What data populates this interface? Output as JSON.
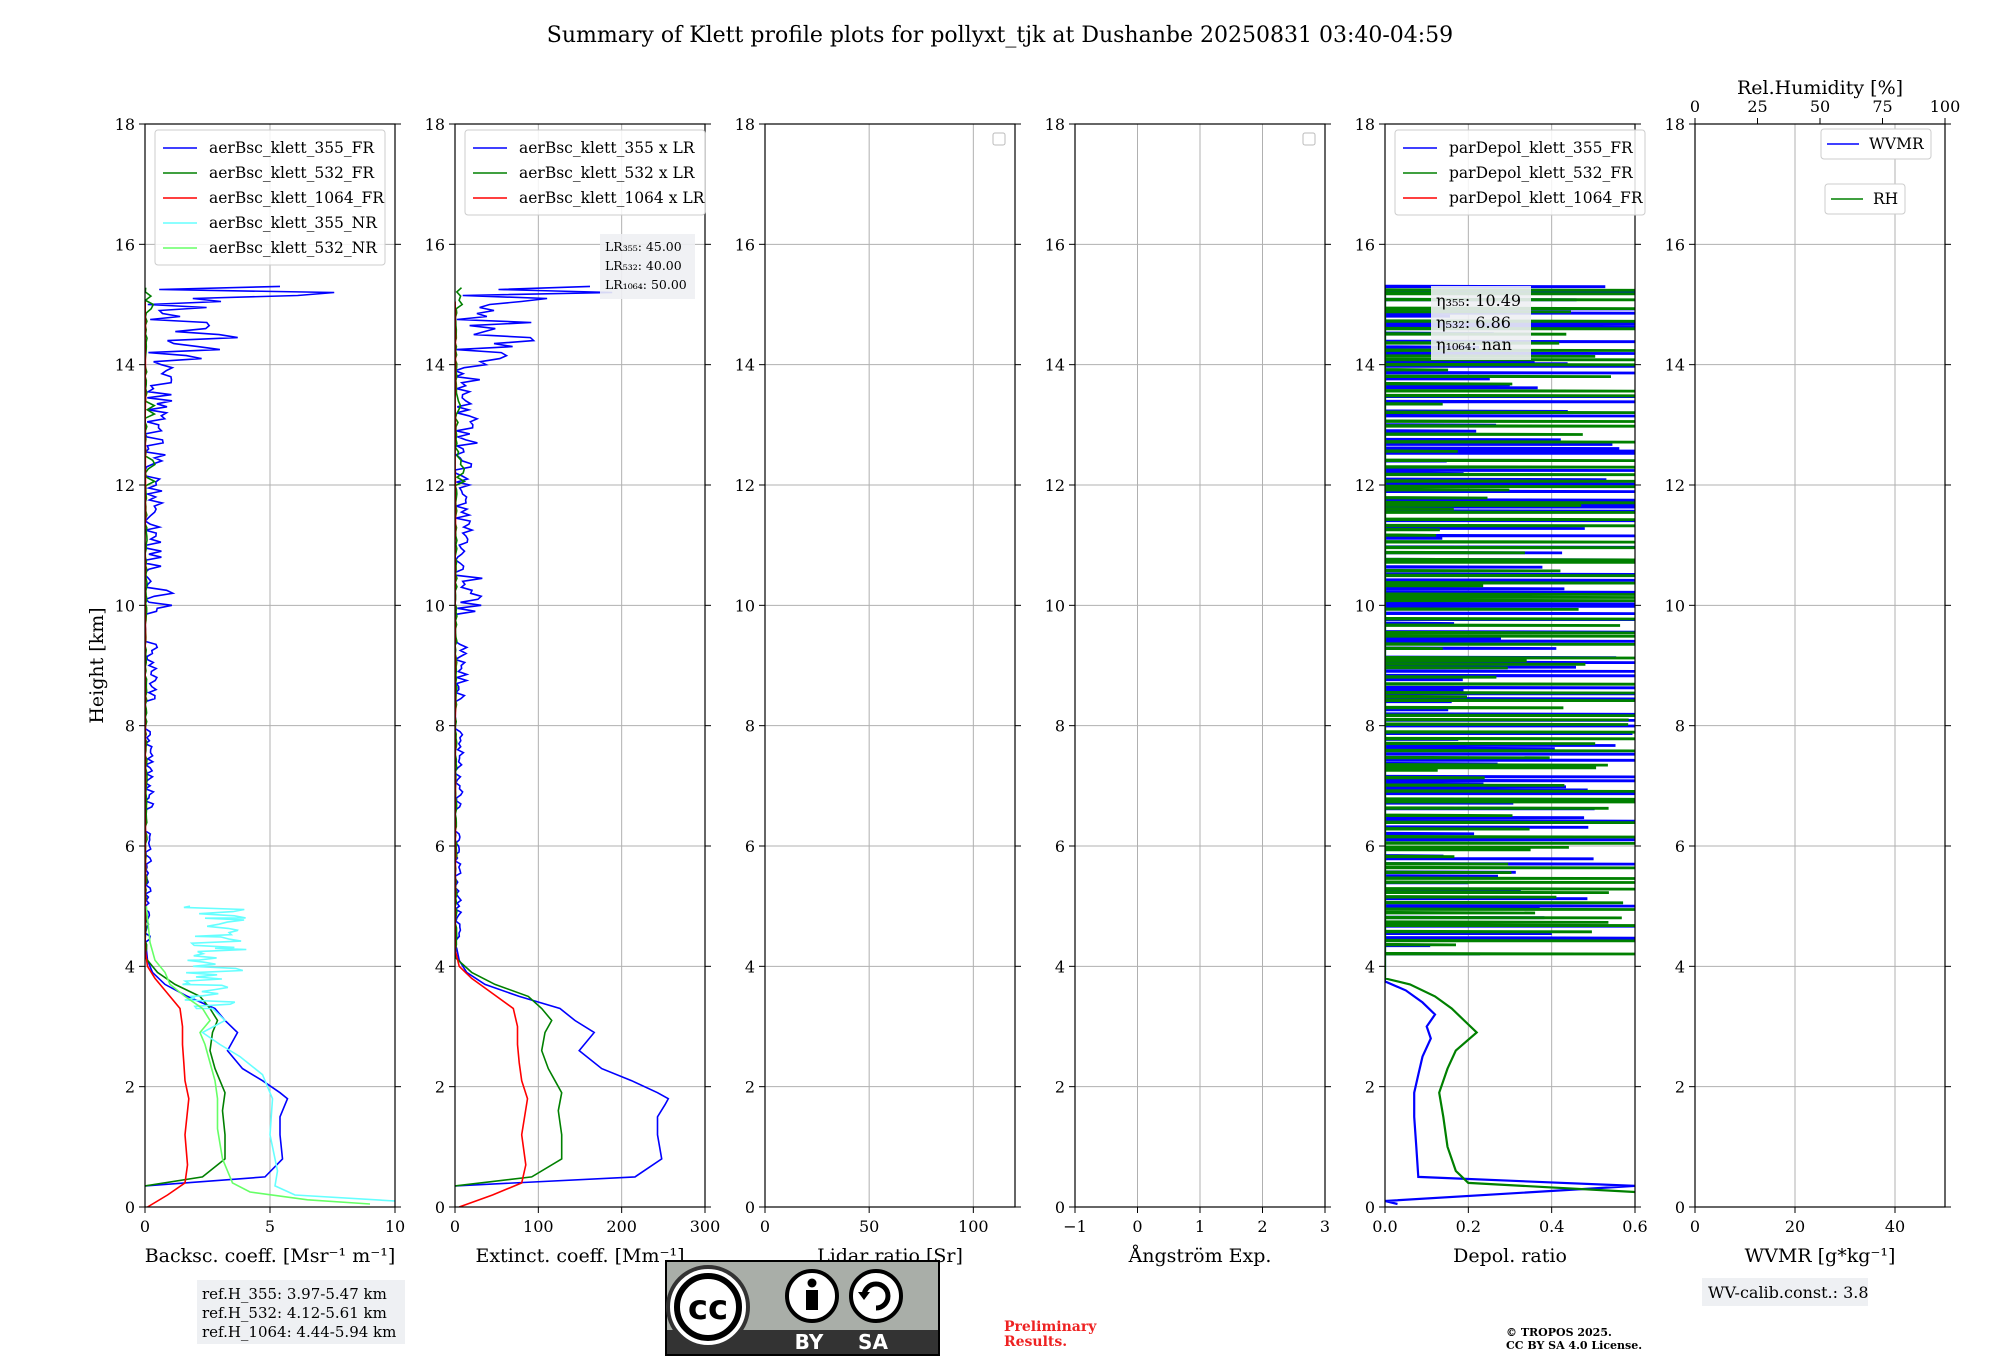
{
  "title": "Summary of Klett profile plots for pollyxt_tjk at Dushanbe 20250831 03:40-04:59",
  "colors": {
    "b355": "#0000ff",
    "g532": "#008000",
    "r1064": "#ff0000",
    "c355nr": "#66ffff",
    "lg532nr": "#66ff66",
    "grid": "#b0b0b0",
    "boxbg": "#eef0f3",
    "prelim": "#ee2222",
    "cc_gray": "#a9aea8",
    "cc_dark": "#333333"
  },
  "footer": {
    "refh": [
      "ref.H_355: 3.97-5.47 km",
      "ref.H_532: 4.12-5.61 km",
      "ref.H_1064: 4.44-5.94 km"
    ],
    "cc_by": "BY",
    "cc_sa": "SA",
    "cc_mark": "cc",
    "preliminary": [
      "Preliminary",
      "Results."
    ],
    "copyright": [
      "© TROPOS 2025.",
      "CC BY SA 4.0 License."
    ],
    "wvcalib": "WV-calib.const.: 3.8"
  },
  "chart_data": [
    {
      "type": "line",
      "xlabel": "Backsc. coeff. [Msr⁻¹ m⁻¹]",
      "ylabel": "Height [km]",
      "xlim": [
        0,
        10
      ],
      "ylim": [
        0,
        18
      ],
      "xticks": [
        "0",
        "5",
        "10"
      ],
      "yticks": [
        "0",
        "2",
        "4",
        "6",
        "8",
        "10",
        "12",
        "14",
        "16",
        "18"
      ],
      "grid": true,
      "legend_placement": "top-left",
      "series": [
        {
          "name": "aerBsc_klett_355_FR",
          "color": "b355",
          "kind": "fr355",
          "y": [
            0.35,
            0.5,
            0.8,
            1.2,
            1.5,
            1.7,
            1.8,
            1.9,
            2.1,
            2.3,
            2.6,
            2.9,
            3.1,
            3.3,
            3.5,
            3.7,
            3.9,
            4.1,
            4.3
          ],
          "x": [
            0,
            4.8,
            5.5,
            5.4,
            5.4,
            5.6,
            5.7,
            5.4,
            4.7,
            3.9,
            3.3,
            3.7,
            3.2,
            2.8,
            1.7,
            0.8,
            0.3,
            0.1,
            0.05
          ]
        },
        {
          "name": "aerBsc_klett_532_FR",
          "color": "g532",
          "kind": "fr532",
          "y": [
            0.35,
            0.5,
            0.8,
            1.2,
            1.6,
            1.9,
            2.1,
            2.3,
            2.6,
            2.9,
            3.1,
            3.3,
            3.5,
            3.7,
            3.9,
            4.1
          ],
          "x": [
            0,
            2.3,
            3.2,
            3.2,
            3.1,
            3.2,
            3.0,
            2.8,
            2.6,
            2.7,
            2.9,
            2.6,
            2.2,
            1.2,
            0.5,
            0.1
          ]
        },
        {
          "name": "aerBsc_klett_1064_FR",
          "color": "r1064",
          "kind": "fr1064",
          "y": [
            0,
            0.2,
            0.4,
            0.7,
            1.2,
            1.8,
            2.1,
            2.4,
            2.7,
            3.0,
            3.3,
            3.6,
            3.8,
            4.0,
            4.2
          ],
          "x": [
            0.1,
            0.9,
            1.6,
            1.7,
            1.6,
            1.75,
            1.6,
            1.55,
            1.5,
            1.5,
            1.4,
            0.8,
            0.4,
            0.1,
            0.03
          ]
        },
        {
          "name": "aerBsc_klett_355_NR",
          "color": "c355nr",
          "kind": "nr355",
          "y": [
            0.1,
            0.2,
            0.35,
            0.6,
            1.2,
            1.8,
            2.2,
            2.5,
            2.7,
            2.9,
            3.1,
            3.3,
            3.5,
            3.7,
            3.9,
            4.1,
            4.3,
            4.5,
            4.6,
            4.8,
            5.0
          ],
          "x": [
            10,
            6,
            5.2,
            5.3,
            5.0,
            5.1,
            4.7,
            3.8,
            3.0,
            2.3,
            3.2,
            2.7,
            1.8,
            1.5,
            2.1,
            1.7,
            2.8,
            2.0,
            3.7,
            2.4,
            1.8
          ]
        },
        {
          "name": "aerBsc_klett_532_NR",
          "color": "lg532nr",
          "kind": "nr532",
          "y": [
            0.05,
            0.12,
            0.25,
            0.4,
            0.8,
            1.3,
            1.8,
            2.1,
            2.4,
            2.7,
            2.9,
            3.1,
            3.3,
            3.5,
            3.7,
            3.9,
            4.1,
            4.4,
            4.8,
            5.0
          ],
          "x": [
            9,
            6.5,
            4.2,
            3.5,
            3.1,
            2.9,
            2.9,
            2.8,
            2.6,
            2.4,
            2.2,
            2.6,
            2.3,
            1.6,
            1.0,
            0.8,
            0.4,
            0.2,
            0.1,
            0.05
          ]
        }
      ]
    },
    {
      "type": "line",
      "xlabel": "Extinct. coeff. [Mm⁻¹]",
      "xlim": [
        0,
        300
      ],
      "ylim": [
        0,
        18
      ],
      "xticks": [
        "0",
        "100",
        "200",
        "300"
      ],
      "yticks": [
        "0",
        "2",
        "4",
        "6",
        "8",
        "10",
        "12",
        "14",
        "16",
        "18"
      ],
      "grid": true,
      "legend_placement": "top-left",
      "annotation": [
        "LR₃₅₅: 45.00",
        "LR₅₃₂: 40.00",
        "LR₁₀₆₄: 50.00"
      ],
      "series": [
        {
          "name": "aerBsc_klett_355 x LR",
          "color": "b355",
          "kind": "fr355",
          "y": [
            0.35,
            0.5,
            0.8,
            1.2,
            1.5,
            1.7,
            1.8,
            1.9,
            2.1,
            2.3,
            2.6,
            2.9,
            3.1,
            3.3,
            3.5,
            3.7,
            3.9,
            4.1,
            4.3
          ],
          "x": [
            0,
            216,
            248,
            243,
            243,
            252,
            256,
            243,
            212,
            176,
            149,
            167,
            144,
            126,
            77,
            36,
            14,
            5,
            2
          ]
        },
        {
          "name": "aerBsc_klett_532 x LR",
          "color": "g532",
          "kind": "fr532",
          "y": [
            0.35,
            0.5,
            0.8,
            1.2,
            1.6,
            1.9,
            2.1,
            2.3,
            2.6,
            2.9,
            3.1,
            3.3,
            3.5,
            3.7,
            3.9,
            4.1
          ],
          "x": [
            0,
            92,
            128,
            128,
            124,
            128,
            120,
            112,
            104,
            108,
            116,
            104,
            88,
            48,
            20,
            4
          ]
        },
        {
          "name": "aerBsc_klett_1064 x LR",
          "color": "r1064",
          "kind": "fr1064",
          "y": [
            0,
            0.2,
            0.4,
            0.7,
            1.2,
            1.8,
            2.1,
            2.4,
            2.7,
            3.0,
            3.3,
            3.6,
            3.8,
            4.0,
            4.2
          ],
          "x": [
            5,
            45,
            80,
            85,
            80,
            87,
            80,
            77,
            75,
            75,
            70,
            40,
            20,
            5,
            1.5
          ]
        }
      ]
    },
    {
      "type": "line",
      "xlabel": "Lidar ratio [Sr]",
      "xlim": [
        0,
        120
      ],
      "ylim": [
        0,
        18
      ],
      "xticks": [
        "0",
        "50",
        "100"
      ],
      "yticks": [
        "0",
        "2",
        "4",
        "6",
        "8",
        "10",
        "12",
        "14",
        "16",
        "18"
      ],
      "grid": true,
      "legend_placement": "top-right",
      "series": []
    },
    {
      "type": "line",
      "xlabel": "Ångström Exp.",
      "xlim": [
        -1,
        3
      ],
      "ylim": [
        0,
        18
      ],
      "xticks": [
        "−1",
        "0",
        "1",
        "2",
        "3"
      ],
      "yticks": [
        "0",
        "2",
        "4",
        "6",
        "8",
        "10",
        "12",
        "14",
        "16",
        "18"
      ],
      "grid": true,
      "legend_placement": "top-right",
      "series": []
    },
    {
      "type": "line",
      "xlabel": "Depol. ratio",
      "xlim": [
        0,
        0.6
      ],
      "ylim": [
        0,
        18
      ],
      "xticks": [
        "0.0",
        "0.2",
        "0.4",
        "0.6"
      ],
      "yticks": [
        "0",
        "2",
        "4",
        "6",
        "8",
        "10",
        "12",
        "14",
        "16",
        "18"
      ],
      "grid": true,
      "legend_placement": "top-left",
      "annotation": [
        "η₃₅₅: 10.49",
        "η₅₃₂: 6.86",
        "η₁₀₆₄: nan"
      ],
      "series": [
        {
          "name": "parDepol_klett_355_FR",
          "color": "b355",
          "kind": "dep355",
          "y": [
            0.05,
            0.1,
            0.35,
            0.5,
            1.0,
            1.5,
            1.9,
            2.2,
            2.5,
            2.8,
            3.0,
            3.2,
            3.4,
            3.6,
            3.75
          ],
          "x": [
            0.03,
            0.0,
            0.6,
            0.08,
            0.075,
            0.07,
            0.07,
            0.08,
            0.09,
            0.11,
            0.1,
            0.12,
            0.09,
            0.05,
            0.0
          ]
        },
        {
          "name": "parDepol_klett_532_FR",
          "color": "g532",
          "kind": "dep532",
          "y": [
            0.25,
            0.4,
            0.6,
            1.0,
            1.5,
            1.9,
            2.3,
            2.6,
            2.9,
            3.1,
            3.3,
            3.5,
            3.7,
            3.8
          ],
          "x": [
            0.6,
            0.2,
            0.17,
            0.15,
            0.14,
            0.13,
            0.15,
            0.17,
            0.22,
            0.19,
            0.16,
            0.12,
            0.06,
            0.0
          ]
        },
        {
          "name": "parDepol_klett_1064_FR",
          "color": "r1064",
          "kind": "none",
          "y": [],
          "x": []
        }
      ]
    },
    {
      "type": "line",
      "xlabel": "WVMR [g*kg⁻¹]",
      "x2label": "Rel.Humidity [%]",
      "xlim": [
        0,
        50
      ],
      "x2lim": [
        0,
        100
      ],
      "ylim": [
        0,
        18
      ],
      "xticks": [
        "0",
        "20",
        "40"
      ],
      "x2ticks": [
        "0",
        "25",
        "50",
        "75",
        "100"
      ],
      "yticks": [
        "0",
        "2",
        "4",
        "6",
        "8",
        "10",
        "12",
        "14",
        "16",
        "18"
      ],
      "grid": true,
      "legend_placement": "top-right",
      "series": [
        {
          "name": "WVMR",
          "color": "b355",
          "kind": "none",
          "y": [],
          "x": []
        },
        {
          "name": "RH",
          "color": "g532",
          "kind": "none",
          "y": [],
          "x": []
        }
      ]
    }
  ]
}
